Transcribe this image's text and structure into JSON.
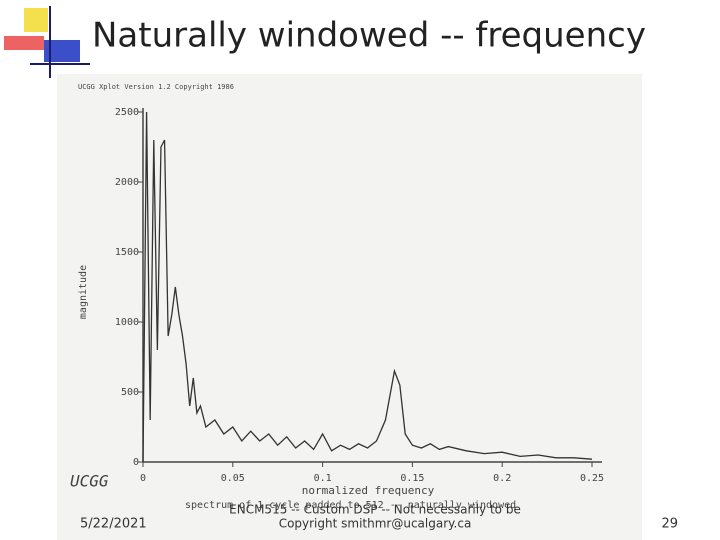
{
  "slide": {
    "title": "Naturally windowed -- frequency",
    "date": "5/22/2021",
    "footer": "ENCM515 -- Custom DSP -- Not necessarily to be",
    "copyright": "Copyright smithmr@ucalgary.ca",
    "page": "29"
  },
  "chart_data": {
    "type": "line",
    "title": "UCGG Xplot Version 1.2 Copyright 1986",
    "logo": "UCGG",
    "xlabel": "normalized frequency",
    "ylabel": "magnitude",
    "caption": "spectrum of 1 cycle padded to 512 -- naturally windowed",
    "x": [
      0,
      0.002,
      0.004,
      0.006,
      0.008,
      0.01,
      0.012,
      0.014,
      0.016,
      0.018,
      0.02,
      0.022,
      0.024,
      0.026,
      0.028,
      0.03,
      0.032,
      0.035,
      0.04,
      0.045,
      0.05,
      0.055,
      0.06,
      0.065,
      0.07,
      0.075,
      0.08,
      0.085,
      0.09,
      0.095,
      0.1,
      0.105,
      0.11,
      0.115,
      0.12,
      0.125,
      0.13,
      0.135,
      0.14,
      0.143,
      0.146,
      0.15,
      0.155,
      0.16,
      0.165,
      0.17,
      0.18,
      0.19,
      0.2,
      0.21,
      0.22,
      0.23,
      0.24,
      0.25
    ],
    "series": [
      {
        "name": "magnitude",
        "color": "#333333",
        "values": [
          0,
          2500,
          300,
          2300,
          800,
          2250,
          2300,
          900,
          1050,
          1250,
          1050,
          900,
          700,
          400,
          600,
          350,
          400,
          250,
          300,
          200,
          250,
          150,
          220,
          150,
          200,
          120,
          180,
          100,
          150,
          90,
          200,
          80,
          120,
          90,
          130,
          100,
          150,
          300,
          650,
          550,
          200,
          120,
          100,
          130,
          90,
          110,
          80,
          60,
          70,
          40,
          50,
          30,
          30,
          20
        ]
      }
    ],
    "xlim": [
      0,
      0.25
    ],
    "xticks": [
      0,
      0.05,
      0.1,
      0.15,
      0.2,
      0.25
    ],
    "ylim": [
      0,
      2500
    ],
    "yticks": [
      0,
      500,
      1000,
      1500,
      2000,
      2500
    ]
  }
}
